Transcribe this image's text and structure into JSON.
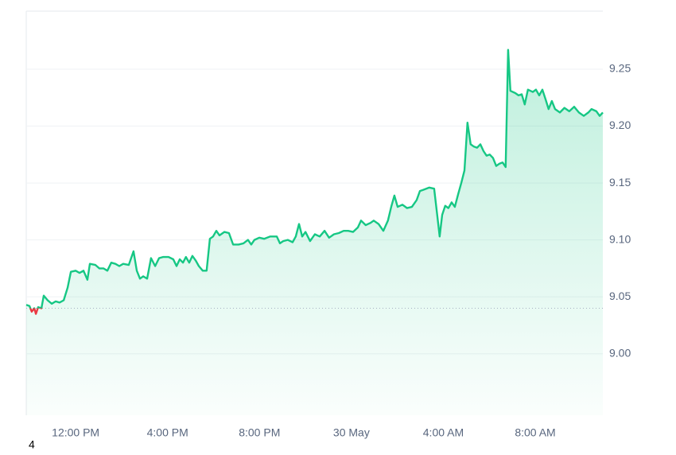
{
  "chart_data": {
    "type": "line",
    "x": [
      9.85,
      9.99,
      10.09,
      10.2,
      10.27,
      10.37,
      10.51,
      10.61,
      10.78,
      10.96,
      11.13,
      11.3,
      11.48,
      11.65,
      11.79,
      12.0,
      12.17,
      12.34,
      12.51,
      12.62,
      12.86,
      13.03,
      13.21,
      13.38,
      13.55,
      13.73,
      13.9,
      14.07,
      14.31,
      14.52,
      14.66,
      14.8,
      14.94,
      15.11,
      15.28,
      15.46,
      15.63,
      15.8,
      16.04,
      16.25,
      16.39,
      16.53,
      16.67,
      16.8,
      16.94,
      17.08,
      17.22,
      17.36,
      17.53,
      17.7,
      17.84,
      17.98,
      18.12,
      18.26,
      18.47,
      18.67,
      18.85,
      19.09,
      19.3,
      19.5,
      19.64,
      19.78,
      19.99,
      20.2,
      20.47,
      20.75,
      20.89,
      21.03,
      21.23,
      21.44,
      21.58,
      21.72,
      21.86,
      22.0,
      22.2,
      22.41,
      22.62,
      22.83,
      23.03,
      23.24,
      23.45,
      23.66,
      23.86,
      24.07,
      24.28,
      24.42,
      24.62,
      24.83,
      24.97,
      25.18,
      25.39,
      25.59,
      25.73,
      25.87,
      26.01,
      26.22,
      26.42,
      26.63,
      26.84,
      26.98,
      27.12,
      27.39,
      27.6,
      27.74,
      27.84,
      27.95,
      28.08,
      28.22,
      28.36,
      28.5,
      28.64,
      28.78,
      28.92,
      29.05,
      29.19,
      29.33,
      29.47,
      29.61,
      29.75,
      29.88,
      30.02,
      30.16,
      30.3,
      30.44,
      30.58,
      30.71,
      30.82,
      30.92,
      31.13,
      31.27,
      31.41,
      31.54,
      31.68,
      31.89,
      32.03,
      32.17,
      32.31,
      32.44,
      32.58,
      32.72,
      32.86,
      33.07,
      33.27,
      33.48,
      33.69,
      33.9,
      34.11,
      34.31,
      34.45,
      34.66,
      34.8,
      34.94
    ],
    "values": [
      9.043,
      9.042,
      9.037,
      9.04,
      9.035,
      9.041,
      9.04,
      9.051,
      9.047,
      9.044,
      9.046,
      9.045,
      9.047,
      9.058,
      9.072,
      9.073,
      9.071,
      9.073,
      9.065,
      9.079,
      9.078,
      9.075,
      9.075,
      9.073,
      9.08,
      9.079,
      9.077,
      9.079,
      9.078,
      9.09,
      9.073,
      9.066,
      9.068,
      9.066,
      9.084,
      9.077,
      9.084,
      9.085,
      9.085,
      9.083,
      9.077,
      9.083,
      9.08,
      9.085,
      9.08,
      9.086,
      9.082,
      9.077,
      9.073,
      9.073,
      9.101,
      9.103,
      9.108,
      9.104,
      9.107,
      9.106,
      9.096,
      9.096,
      9.097,
      9.1,
      9.096,
      9.1,
      9.102,
      9.101,
      9.103,
      9.103,
      9.097,
      9.099,
      9.1,
      9.098,
      9.103,
      9.114,
      9.103,
      9.107,
      9.099,
      9.105,
      9.103,
      9.108,
      9.102,
      9.105,
      9.106,
      9.108,
      9.108,
      9.107,
      9.111,
      9.117,
      9.113,
      9.115,
      9.117,
      9.114,
      9.108,
      9.117,
      9.129,
      9.139,
      9.129,
      9.131,
      9.128,
      9.129,
      9.135,
      9.143,
      9.144,
      9.146,
      9.145,
      9.121,
      9.103,
      9.122,
      9.13,
      9.128,
      9.133,
      9.129,
      9.14,
      9.15,
      9.161,
      9.203,
      9.184,
      9.182,
      9.181,
      9.184,
      9.178,
      9.174,
      9.175,
      9.172,
      9.165,
      9.167,
      9.168,
      9.164,
      9.267,
      9.231,
      9.229,
      9.227,
      9.228,
      9.219,
      9.232,
      9.23,
      9.232,
      9.227,
      9.232,
      9.224,
      9.215,
      9.222,
      9.215,
      9.212,
      9.216,
      9.213,
      9.217,
      9.212,
      9.209,
      9.212,
      9.215,
      9.213,
      9.209,
      9.212
    ],
    "color": "#16c784",
    "below_color": "#ea3943",
    "reference_line": 9.04,
    "xlim": [
      9.85,
      34.94
    ],
    "xticks": [
      {
        "value": 12,
        "label": "12:00 PM"
      },
      {
        "value": 16,
        "label": "4:00 PM"
      },
      {
        "value": 20,
        "label": "8:00 PM"
      },
      {
        "value": 24,
        "label": "30 May"
      },
      {
        "value": 28,
        "label": "4:00 AM"
      },
      {
        "value": 32,
        "label": "8:00 AM"
      }
    ],
    "ylim": [
      8.946,
      9.301
    ],
    "yticks": [
      {
        "value": 9,
        "label": "9.00"
      },
      9.05,
      {
        "value": 9.1,
        "label": "9.10"
      },
      9.15,
      {
        "value": 9.2,
        "label": "9.20"
      },
      9.25
    ],
    "grid": true,
    "footnote": "4"
  }
}
